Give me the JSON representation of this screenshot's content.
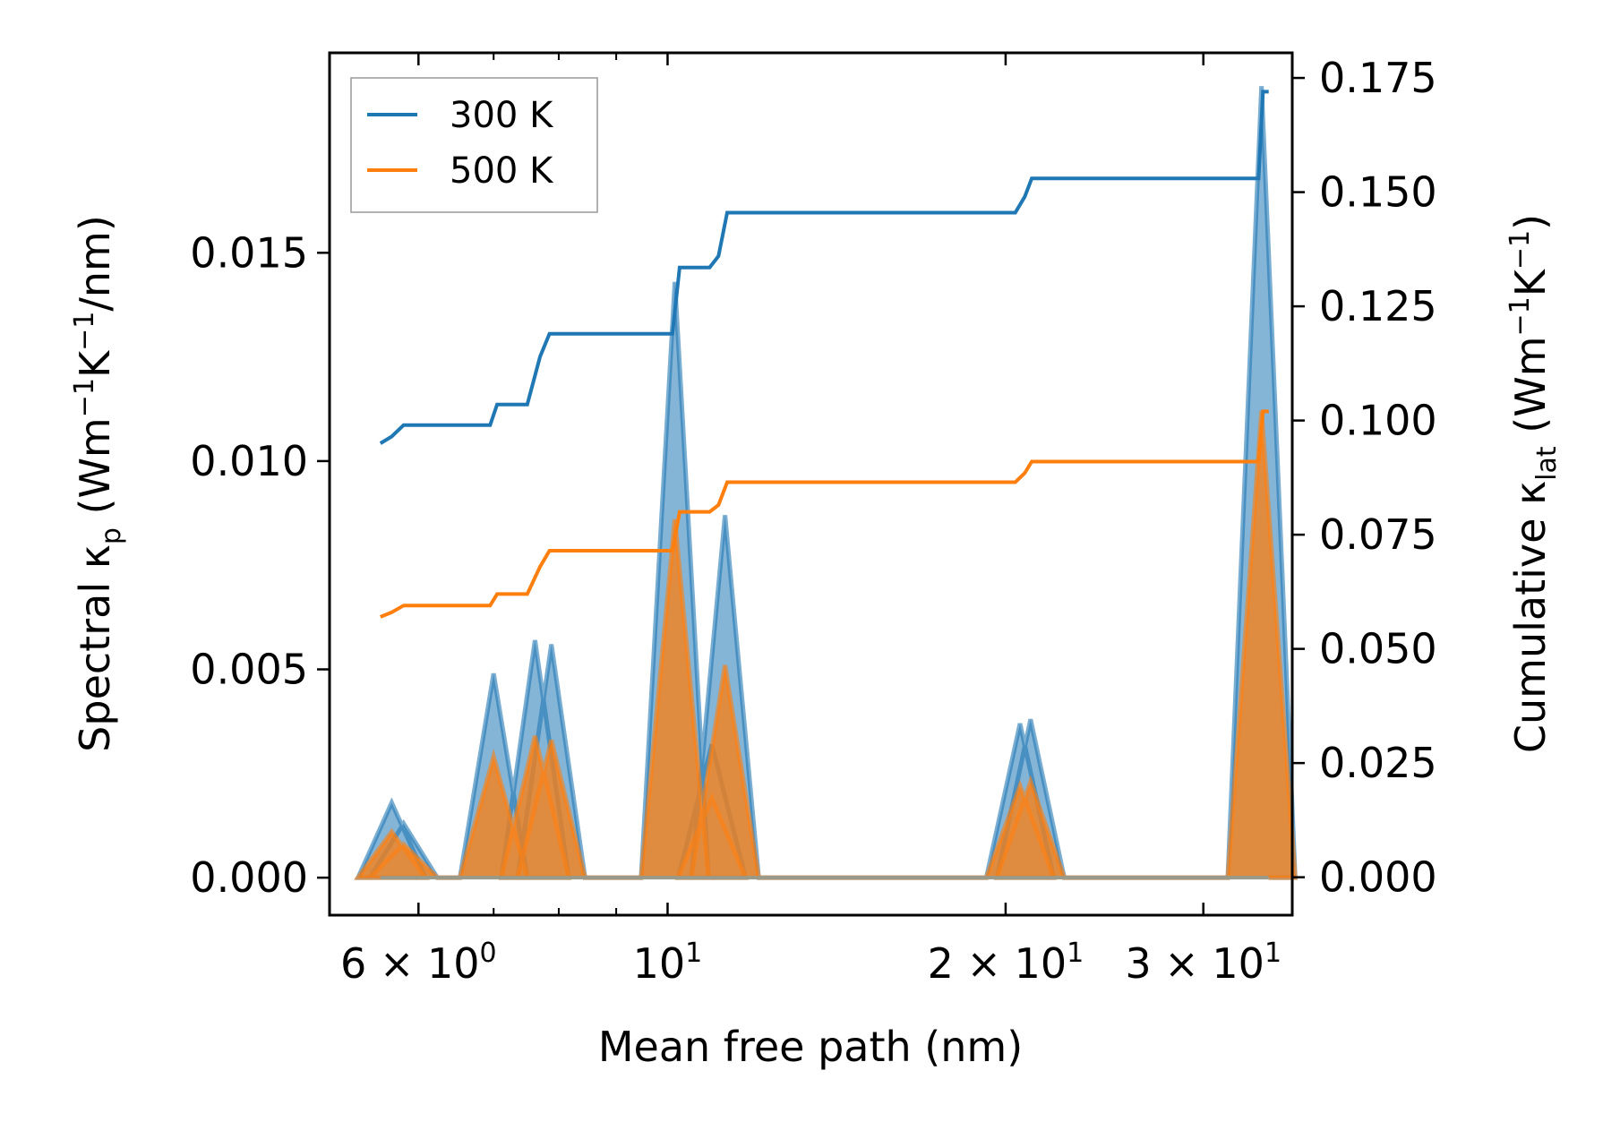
{
  "chart_data": {
    "type": "line",
    "xscale": "log",
    "xlabel": "Mean free path (nm)",
    "ylabel_left": {
      "prefix": "Spectral κ",
      "sub": "p",
      "unit_a": " (Wm",
      "exp1": "−1",
      "unit_b": "K",
      "exp2": "−1",
      "unit_c": "/nm)"
    },
    "ylabel_right": {
      "prefix": "Cumulative κ",
      "sub": "lat",
      "unit_a": " (Wm",
      "exp1": "−1",
      "unit_b": "K",
      "exp2": "−1",
      "unit_c": ")"
    },
    "xlim": [
      5.0,
      36.0
    ],
    "ylim_left": [
      -0.0009,
      0.0198
    ],
    "ylim_right": [
      -0.0083,
      0.1805
    ],
    "x_ticks": [
      {
        "value": 6,
        "mantissa": "6 × 10",
        "exp": "0"
      },
      {
        "value": 10,
        "mantissa": "10",
        "exp": "1"
      },
      {
        "value": 20,
        "mantissa": "2 × 10",
        "exp": "1"
      },
      {
        "value": 30,
        "mantissa": "3 × 10",
        "exp": "1"
      }
    ],
    "y_left_ticks": [
      "0.000",
      "0.005",
      "0.010",
      "0.015"
    ],
    "y_left_tick_values": [
      0,
      0.005,
      0.01,
      0.015
    ],
    "y_right_ticks": [
      "0.000",
      "0.025",
      "0.050",
      "0.075",
      "0.100",
      "0.125",
      "0.150",
      "0.175"
    ],
    "y_right_tick_values": [
      0,
      0.025,
      0.05,
      0.075,
      0.1,
      0.125,
      0.15,
      0.175
    ],
    "legend": [
      {
        "label": "300 K",
        "color": "#1f77b4"
      },
      {
        "label": "500 K",
        "color": "#ff7f0e"
      }
    ],
    "series": [
      {
        "name": "300 K",
        "color": "#1f77b4",
        "spectral_peaks": [
          {
            "x": 5.68,
            "y": 0.0018
          },
          {
            "x": 5.82,
            "y": 0.0013
          },
          {
            "x": 7.0,
            "y": 0.0049
          },
          {
            "x": 7.62,
            "y": 0.0057
          },
          {
            "x": 7.88,
            "y": 0.0056
          },
          {
            "x": 10.15,
            "y": 0.0143
          },
          {
            "x": 10.95,
            "y": 0.0032
          },
          {
            "x": 11.25,
            "y": 0.0087
          },
          {
            "x": 20.6,
            "y": 0.0037
          },
          {
            "x": 21.05,
            "y": 0.0038
          },
          {
            "x": 33.8,
            "y": 0.019
          }
        ],
        "cumulative": [
          [
            5.55,
            0.095
          ],
          [
            5.68,
            0.0965
          ],
          [
            5.82,
            0.099
          ],
          [
            6.95,
            0.099
          ],
          [
            7.05,
            0.1035
          ],
          [
            7.5,
            0.1035
          ],
          [
            7.7,
            0.114
          ],
          [
            7.85,
            0.119
          ],
          [
            10.1,
            0.119
          ],
          [
            10.25,
            0.1335
          ],
          [
            10.9,
            0.1335
          ],
          [
            11.1,
            0.136
          ],
          [
            11.3,
            0.1455
          ],
          [
            20.4,
            0.1455
          ],
          [
            20.8,
            0.149
          ],
          [
            21.1,
            0.153
          ],
          [
            33.6,
            0.153
          ],
          [
            33.9,
            0.172
          ],
          [
            34.3,
            0.172
          ]
        ]
      },
      {
        "name": "500 K",
        "color": "#ff7f0e",
        "spectral_peaks": [
          {
            "x": 5.68,
            "y": 0.0011
          },
          {
            "x": 5.82,
            "y": 0.0008
          },
          {
            "x": 7.0,
            "y": 0.0029
          },
          {
            "x": 7.62,
            "y": 0.0034
          },
          {
            "x": 7.88,
            "y": 0.0033
          },
          {
            "x": 10.15,
            "y": 0.0086
          },
          {
            "x": 10.95,
            "y": 0.0019
          },
          {
            "x": 11.25,
            "y": 0.0051
          },
          {
            "x": 20.6,
            "y": 0.0022
          },
          {
            "x": 21.05,
            "y": 0.0023
          },
          {
            "x": 33.8,
            "y": 0.0112
          }
        ],
        "cumulative": [
          [
            5.55,
            0.057
          ],
          [
            5.68,
            0.058
          ],
          [
            5.82,
            0.0595
          ],
          [
            6.95,
            0.0595
          ],
          [
            7.05,
            0.062
          ],
          [
            7.5,
            0.062
          ],
          [
            7.7,
            0.068
          ],
          [
            7.85,
            0.0715
          ],
          [
            10.1,
            0.0715
          ],
          [
            10.25,
            0.08
          ],
          [
            10.9,
            0.08
          ],
          [
            11.1,
            0.0815
          ],
          [
            11.3,
            0.0865
          ],
          [
            20.4,
            0.0865
          ],
          [
            20.8,
            0.0885
          ],
          [
            21.1,
            0.091
          ],
          [
            33.6,
            0.091
          ],
          [
            33.9,
            0.102
          ],
          [
            34.3,
            0.102
          ]
        ]
      }
    ]
  }
}
